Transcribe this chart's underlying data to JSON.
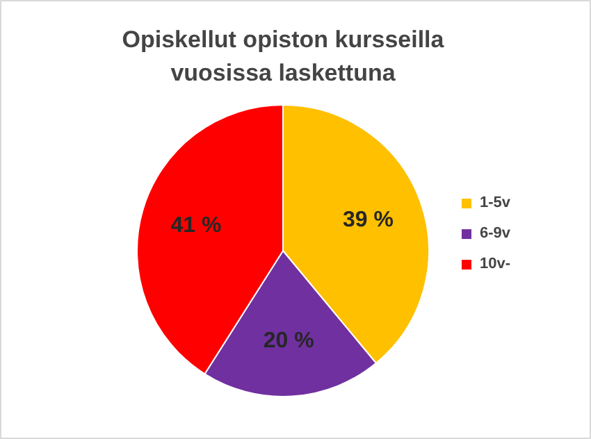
{
  "chart_data": {
    "type": "pie",
    "title": "Opiskellut opiston kursseilla vuosissa laskettuna",
    "categories": [
      "1-5v",
      "6-9v",
      "10v-"
    ],
    "values": [
      39,
      20,
      41
    ],
    "colors": [
      "#ffc000",
      "#7030a0",
      "#ff0000"
    ],
    "value_labels": [
      "39 %",
      "20 %",
      "41 %"
    ],
    "legend": "right"
  }
}
